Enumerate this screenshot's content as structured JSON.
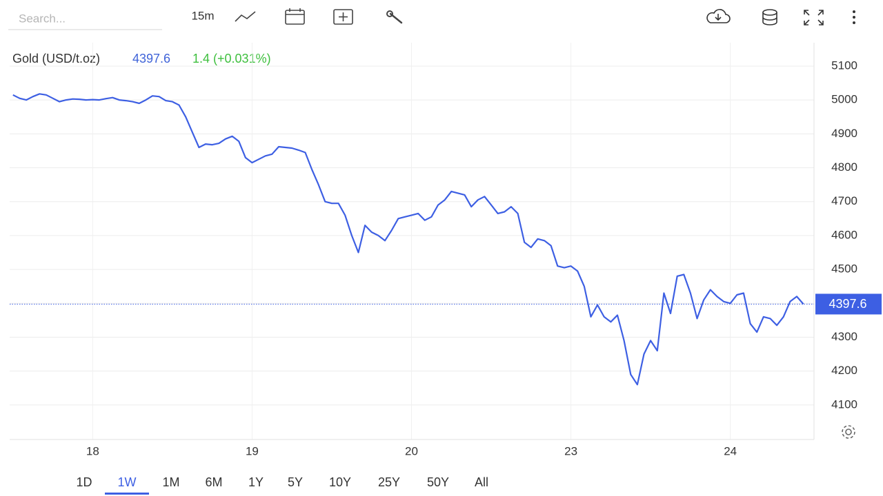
{
  "toolbar": {
    "search_placeholder": "Search...",
    "interval": "15m"
  },
  "header": {
    "instrument": "Gold (USD/t.oz)",
    "change": "1.4 (+0.031%)"
  },
  "ranges": {
    "items": [
      "1D",
      "1W",
      "1M",
      "6M",
      "1Y",
      "5Y",
      "10Y",
      "25Y",
      "50Y",
      "All"
    ],
    "active": "1W"
  },
  "chart_data": {
    "type": "line",
    "categories": [
      null,
      null,
      null,
      null,
      null,
      null,
      null,
      null,
      null,
      null,
      null,
      null,
      "18",
      null,
      null,
      null,
      null,
      null,
      null,
      null,
      null,
      null,
      null,
      null,
      null,
      null,
      null,
      null,
      null,
      null,
      null,
      null,
      null,
      null,
      null,
      null,
      "19",
      null,
      null,
      null,
      null,
      null,
      null,
      null,
      null,
      null,
      null,
      null,
      null,
      null,
      null,
      null,
      null,
      null,
      null,
      null,
      null,
      null,
      null,
      null,
      "20",
      null,
      null,
      null,
      null,
      null,
      null,
      null,
      null,
      null,
      null,
      null,
      null,
      null,
      null,
      null,
      null,
      null,
      null,
      null,
      null,
      null,
      null,
      null,
      "23",
      null,
      null,
      null,
      null,
      null,
      null,
      null,
      null,
      null,
      null,
      null,
      null,
      null,
      null,
      null,
      null,
      null,
      null,
      null,
      null,
      null,
      null,
      null,
      "24",
      null,
      null,
      null,
      null,
      null,
      null,
      null,
      null,
      null,
      null,
      null
    ],
    "series": [
      {
        "name": "Gold (USD/t.oz)",
        "color": "#3d5fe3",
        "values": [
          5015,
          5005,
          5000,
          5010,
          5018,
          5015,
          5005,
          4995,
          5000,
          5003,
          5002,
          5000,
          5001,
          5000,
          5004,
          5007,
          5000,
          4998,
          4995,
          4990,
          5000,
          5012,
          5010,
          4998,
          4995,
          4985,
          4950,
          4905,
          4860,
          4870,
          4868,
          4872,
          4885,
          4893,
          4878,
          4830,
          4815,
          4825,
          4835,
          4840,
          4862,
          4860,
          4858,
          4852,
          4845,
          4795,
          4750,
          4700,
          4695,
          4695,
          4660,
          4600,
          4550,
          4630,
          4610,
          4600,
          4585,
          4615,
          4650,
          4655,
          4660,
          4665,
          4645,
          4655,
          4690,
          4705,
          4730,
          4725,
          4720,
          4685,
          4705,
          4715,
          4690,
          4665,
          4670,
          4685,
          4665,
          4580,
          4565,
          4590,
          4585,
          4570,
          4510,
          4505,
          4510,
          4495,
          4450,
          4360,
          4395,
          4360,
          4345,
          4365,
          4290,
          4190,
          4160,
          4250,
          4290,
          4260,
          4430,
          4370,
          4480,
          4485,
          4430,
          4355,
          4410,
          4440,
          4420,
          4405,
          4400,
          4425,
          4430,
          4340,
          4315,
          4360,
          4355,
          4335,
          4360,
          4405,
          4420,
          4397.6
        ]
      }
    ],
    "xlim": [
      -0.5,
      120.6
    ],
    "ylim": [
      3998,
      5169
    ],
    "yticks": [
      4100,
      4200,
      4300,
      4400,
      4500,
      4600,
      4700,
      4800,
      4900,
      5000,
      5100
    ],
    "grid": true
  }
}
